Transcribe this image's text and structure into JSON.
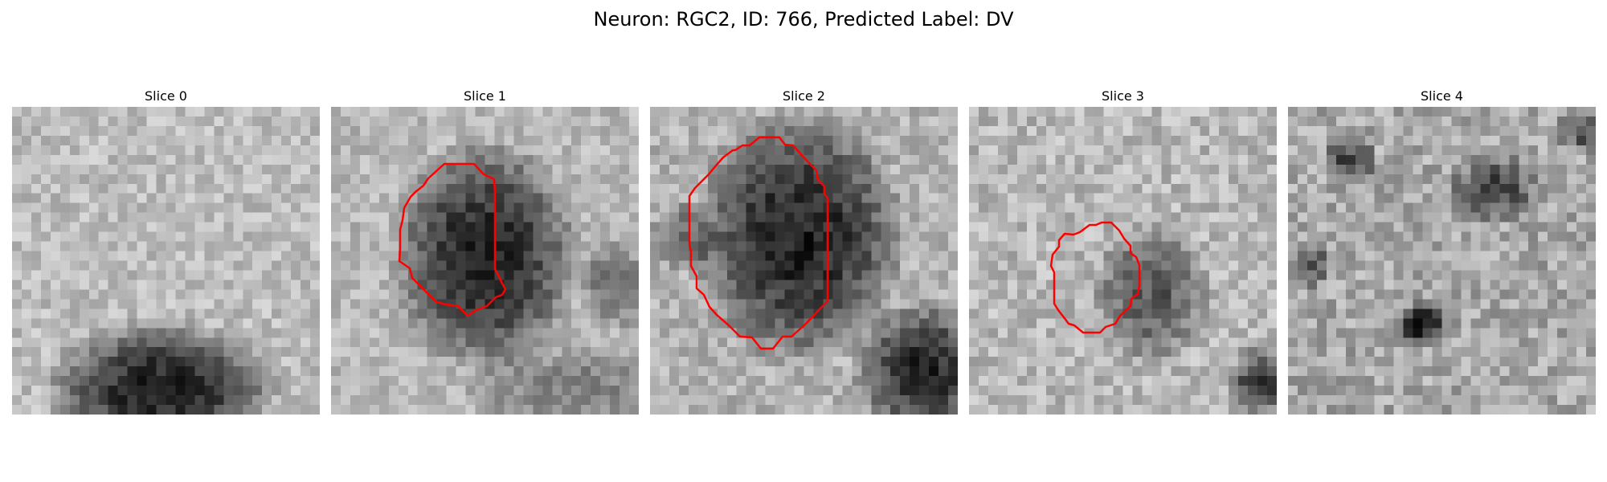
{
  "figure": {
    "title": "Neuron: RGC2, ID: 766, Predicted Label: DV"
  },
  "contour_color": "#ff0000",
  "colormap": "grayscale",
  "slices": [
    {
      "label": "Slice 0",
      "has_contour": false
    },
    {
      "label": "Slice 1",
      "has_contour": true
    },
    {
      "label": "Slice 2",
      "has_contour": true
    },
    {
      "label": "Slice 3",
      "has_contour": true
    },
    {
      "label": "Slice 4",
      "has_contour": false
    }
  ]
}
